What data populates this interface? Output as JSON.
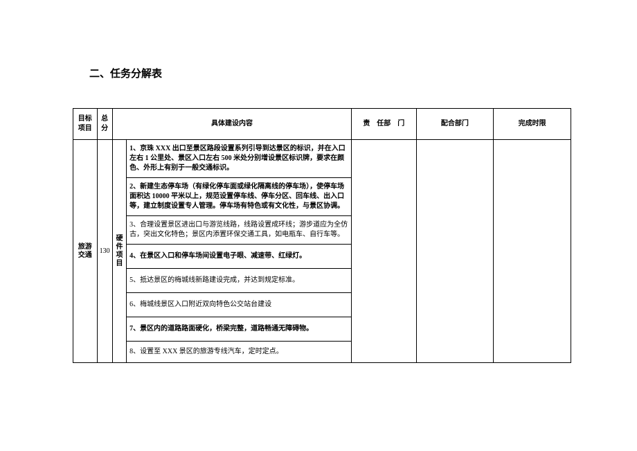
{
  "heading": "二、任务分解表",
  "table": {
    "headers": {
      "target": "目标项目",
      "score": "总分",
      "content": "具体建设内容",
      "dept": "责　任部　门",
      "coop": "配合部门",
      "deadline": "完成时限"
    },
    "target_label_line1": "旅游",
    "target_label_line2": "交通",
    "score_value": "130",
    "category_line1": "硬",
    "category_line2": "件",
    "category_line3": "项",
    "category_line4": "目",
    "rows": [
      {
        "text": "1、京珠 XXX 出口至景区路段设置系列引导到达景区的标识，并在入口左右 1 公里处、景区入口左右 500 米处分别增设景区标识牌，要求在颜色、外形上有别于一般交通标识。",
        "bold": true
      },
      {
        "text": "2、新建生态停车场（有绿化停车面或绿化隔离线的停车场），使停车场面积达 10000 平米以上，规范设置停车线、停车分区、回车线、出入口等，建立制度设置专人管理。停车场有特色或有文化性，与景区协调。",
        "bold": true
      },
      {
        "text": "3、合理设置景区进出口与游览线路，线路设置成环线；游步道应为全仿古，突出文化特色；景区内添置环保交通工具，如电瓶车、自行车等。",
        "bold": false
      },
      {
        "text": "4、在景区入口和停车场间设置电子眼、减速带、红绿灯。",
        "bold": true
      },
      {
        "text": "5、抵达景区的梅城线新路建设完成，并达到规定标准。",
        "bold": false
      },
      {
        "text": "6、梅城线景区入口附近双向特色公交站台建设",
        "bold": false
      },
      {
        "text": "7、景区内的道路路面硬化，桥梁完整，道路畅通无障碍物。",
        "bold": true
      },
      {
        "text": "8、设置至 XXX 景区的旅游专线汽车，定时定点。",
        "bold": false
      }
    ]
  },
  "styling": {
    "background_color": "#ffffff",
    "text_color": "#000000",
    "border_color": "#000000",
    "heading_fontsize": 15,
    "body_fontsize": 10,
    "font_family": "SimSun"
  }
}
